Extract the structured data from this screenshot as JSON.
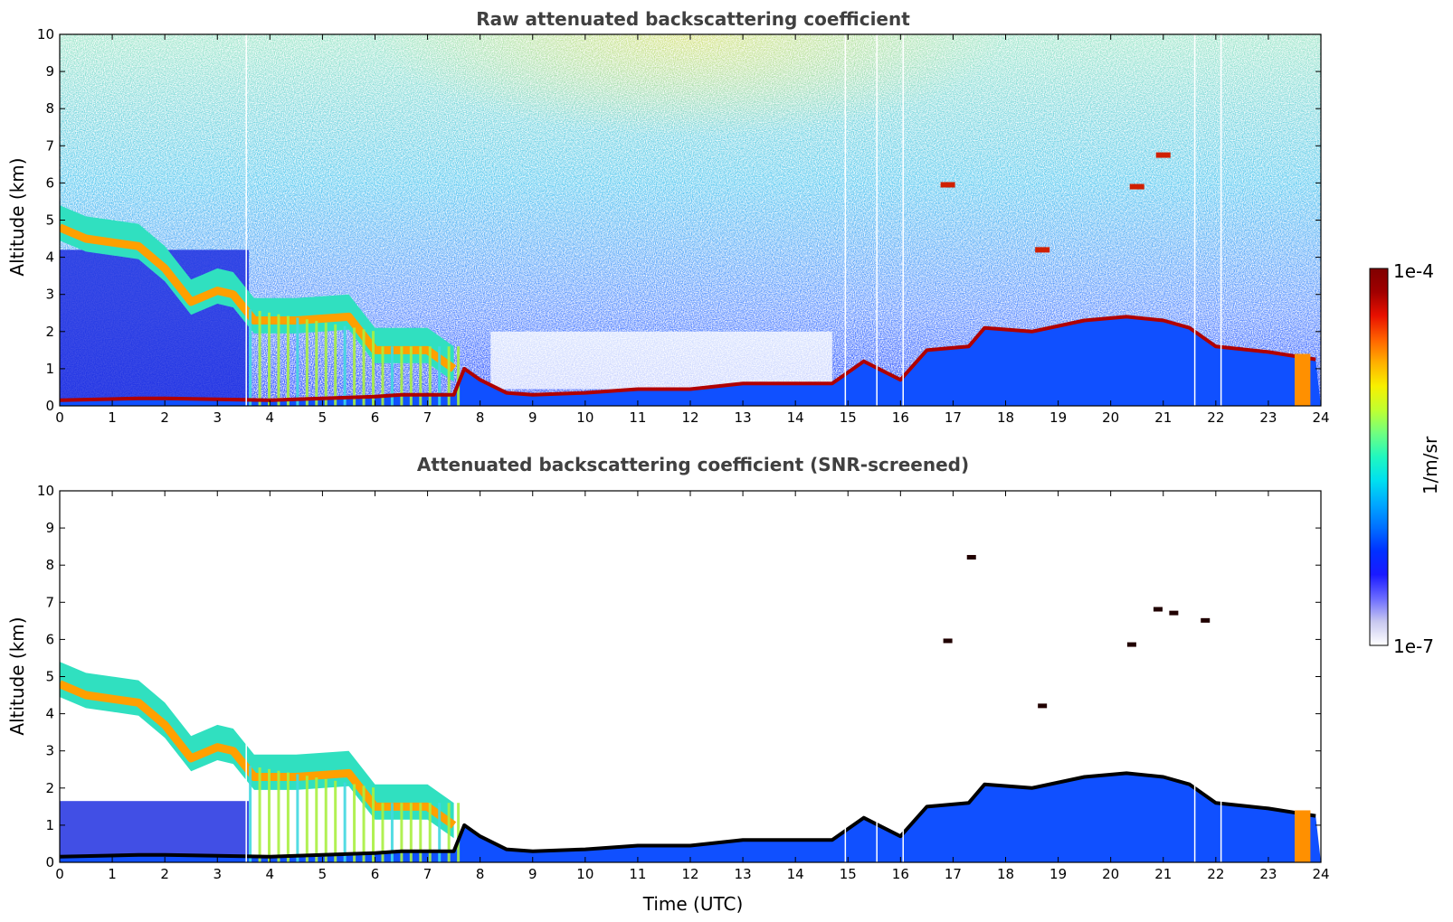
{
  "chart_data": [
    {
      "type": "heatmap",
      "title": "Raw attenuated backscattering coefficient",
      "xlabel": "",
      "ylabel": "Altitude (km)",
      "xlim": [
        0,
        24
      ],
      "ylim": [
        0,
        10
      ],
      "x_ticks": [
        "0",
        "1",
        "2",
        "3",
        "4",
        "5",
        "6",
        "7",
        "8",
        "9",
        "10",
        "11",
        "12",
        "13",
        "14",
        "15",
        "16",
        "17",
        "18",
        "19",
        "20",
        "21",
        "22",
        "23",
        "24"
      ],
      "y_ticks": [
        "0",
        "1",
        "2",
        "3",
        "4",
        "5",
        "6",
        "7",
        "8",
        "9",
        "10"
      ],
      "screened": false,
      "cloud_base_km": [
        [
          0.0,
          0.15
        ],
        [
          1.5,
          0.2
        ],
        [
          2.0,
          0.2
        ],
        [
          4.0,
          0.15
        ],
        [
          5.0,
          0.2
        ],
        [
          6.0,
          0.25
        ],
        [
          6.5,
          0.3
        ],
        [
          7.5,
          0.3
        ],
        [
          7.7,
          1.0
        ],
        [
          8.0,
          0.7
        ],
        [
          8.5,
          0.35
        ],
        [
          9.0,
          0.3
        ],
        [
          10.0,
          0.35
        ],
        [
          11.0,
          0.45
        ],
        [
          12.0,
          0.45
        ],
        [
          13.0,
          0.6
        ],
        [
          14.0,
          0.6
        ],
        [
          14.7,
          0.6
        ],
        [
          15.3,
          1.2
        ],
        [
          16.0,
          0.7
        ],
        [
          16.5,
          1.5
        ],
        [
          17.3,
          1.6
        ],
        [
          17.6,
          2.1
        ],
        [
          18.5,
          2.0
        ],
        [
          19.5,
          2.3
        ],
        [
          20.3,
          2.4
        ],
        [
          21.0,
          2.3
        ],
        [
          21.5,
          2.1
        ],
        [
          22.0,
          1.6
        ],
        [
          23.0,
          1.45
        ],
        [
          23.9,
          1.25
        ]
      ],
      "upper_layer_km": [
        [
          0.0,
          4.8
        ],
        [
          0.5,
          4.5
        ],
        [
          1.0,
          4.4
        ],
        [
          1.5,
          4.3
        ],
        [
          2.0,
          3.7
        ],
        [
          2.5,
          2.8
        ],
        [
          3.0,
          3.1
        ],
        [
          3.3,
          3.0
        ],
        [
          3.7,
          2.3
        ],
        [
          4.5,
          2.3
        ],
        [
          5.5,
          2.4
        ],
        [
          6.0,
          1.5
        ],
        [
          7.0,
          1.5
        ],
        [
          7.5,
          1.0
        ]
      ]
    },
    {
      "type": "heatmap",
      "title": "Attenuated backscattering coefficient (SNR-screened)",
      "xlabel": "Time (UTC)",
      "ylabel": "Altitude (km)",
      "xlim": [
        0,
        24
      ],
      "ylim": [
        0,
        10
      ],
      "x_ticks": [
        "0",
        "1",
        "2",
        "3",
        "4",
        "5",
        "6",
        "7",
        "8",
        "9",
        "10",
        "11",
        "12",
        "13",
        "14",
        "15",
        "16",
        "17",
        "18",
        "19",
        "20",
        "21",
        "22",
        "23",
        "24"
      ],
      "y_ticks": [
        "0",
        "1",
        "2",
        "3",
        "4",
        "5",
        "6",
        "7",
        "8",
        "9",
        "10"
      ],
      "screened": true,
      "isolated_features_km": [
        [
          20.9,
          6.8
        ],
        [
          21.2,
          6.7
        ],
        [
          21.8,
          6.5
        ],
        [
          16.9,
          5.95
        ],
        [
          20.4,
          5.85
        ],
        [
          18.7,
          4.2
        ],
        [
          17.35,
          8.2
        ]
      ]
    }
  ],
  "colorbar": {
    "label": "1/m/sr",
    "min_label": "1e-7",
    "max_label": "1e-4",
    "colors": [
      "#ffffff",
      "#c8c8f0",
      "#6a6aff",
      "#1a1aff",
      "#0030ff",
      "#0070ff",
      "#00a8ff",
      "#00e0f0",
      "#20f8c0",
      "#70ff80",
      "#c0ff30",
      "#f8f000",
      "#ffb000",
      "#ff6000",
      "#e81000",
      "#a00000",
      "#800000"
    ]
  }
}
